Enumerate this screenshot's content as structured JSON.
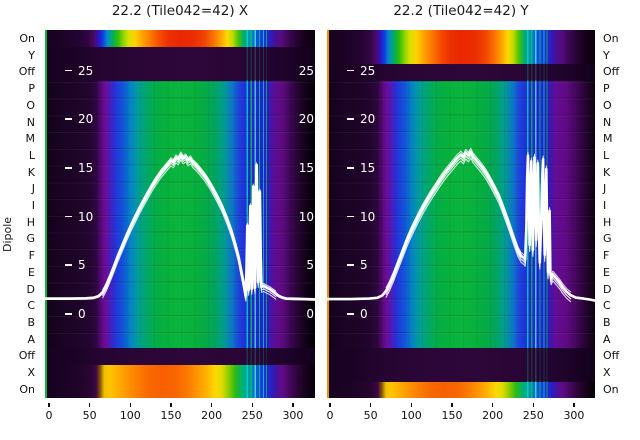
{
  "figure": {
    "ylabel": "Dipole",
    "dipole_labels": [
      "On",
      "Y",
      "Off",
      "P",
      "O",
      "N",
      "M",
      "L",
      "K",
      "J",
      "I",
      "H",
      "G",
      "F",
      "E",
      "D",
      "C",
      "B",
      "A",
      "Off",
      "X",
      "On"
    ],
    "x_tick_labels": [
      "0",
      "50",
      "100",
      "150",
      "200",
      "250",
      "300"
    ],
    "amplitude_tick_labels": [
      "25",
      "20",
      "15",
      "10",
      "5",
      "0"
    ],
    "colors": {
      "background": "#ffffff",
      "heatmap_dark": "#1d0327",
      "heatmap_green": "#08b13c",
      "heatmap_blue": "#2030d8",
      "heatmap_purple": "#630b90",
      "heatmap_red": "#e92800",
      "curve": "#ffffff"
    }
  },
  "panels": [
    {
      "title": "22.2 (Tile042=42) X",
      "pol": "X"
    },
    {
      "title": "22.2 (Tile042=42) Y",
      "pol": "Y"
    }
  ],
  "chart_data": [
    {
      "type": "heatmap",
      "title": "22.2 (Tile042=42) X",
      "ylabel": "Dipole",
      "x_ticks": [
        0,
        50,
        100,
        150,
        200,
        250,
        300
      ],
      "x_range": [
        -5,
        333
      ],
      "rows": [
        "On",
        "Y",
        "Off",
        "P",
        "O",
        "N",
        "M",
        "L",
        "K",
        "J",
        "I",
        "H",
        "G",
        "F",
        "E",
        "D",
        "C",
        "B",
        "A",
        "Off",
        "X",
        "On"
      ],
      "row_character": {
        "top_strong_rows": [
          "On"
        ],
        "top_off_rows": [
          "Y",
          "Off"
        ],
        "middle_rows": "P through A: purple-blue-green-blue-purple spectrum body with bright RFI stripes near channels 250-270, fading to black at right edge",
        "bottom_off_rows": [
          "Off"
        ],
        "bottom_strong_rows": [
          "X",
          "On"
        ]
      },
      "colormap": "jet-like over dark purple background",
      "overlay_line": {
        "name": "white bandpass amplitude (all dipoles overlaid)",
        "amplitude_ticks": [
          25,
          20,
          15,
          10,
          5,
          0
        ],
        "points": [
          [
            -6,
            -1.5
          ],
          [
            25,
            -1.5
          ],
          [
            45,
            -1.48
          ],
          [
            55,
            -1.42
          ],
          [
            61,
            -1.25
          ],
          [
            66,
            -0.85
          ],
          [
            70,
            -0.25
          ],
          [
            74,
            0.55
          ],
          [
            79,
            1.6
          ],
          [
            84,
            2.7
          ],
          [
            90,
            3.9
          ],
          [
            96,
            5.1
          ],
          [
            102,
            6.2
          ],
          [
            108,
            7.2
          ],
          [
            114,
            8.2
          ],
          [
            120,
            9.1
          ],
          [
            126,
            10.0
          ],
          [
            132,
            10.8
          ],
          [
            138,
            11.5
          ],
          [
            143,
            12.0
          ],
          [
            147,
            12.4
          ],
          [
            150,
            12.7
          ],
          [
            153,
            12.5
          ],
          [
            156,
            13.0
          ],
          [
            159,
            12.8
          ],
          [
            162,
            13.3
          ],
          [
            165,
            12.9
          ],
          [
            168,
            13.1
          ],
          [
            171,
            12.7
          ],
          [
            174,
            12.9
          ],
          [
            177,
            12.5
          ],
          [
            181,
            12.2
          ],
          [
            185,
            11.8
          ],
          [
            190,
            11.3
          ],
          [
            195,
            10.7
          ],
          [
            200,
            10.0
          ],
          [
            206,
            9.1
          ],
          [
            212,
            8.1
          ],
          [
            218,
            6.9
          ],
          [
            224,
            5.5
          ],
          [
            229,
            4.1
          ],
          [
            233,
            2.8
          ],
          [
            236,
            1.5
          ],
          [
            239,
            0.2
          ],
          [
            241,
            -0.8
          ],
          [
            242,
            -1.2
          ],
          [
            243,
            1.5
          ],
          [
            244,
            6.0
          ],
          [
            244.8,
            2.0
          ],
          [
            245.6,
            -0.6
          ],
          [
            246.6,
            3.5
          ],
          [
            247.6,
            8.0
          ],
          [
            248.6,
            2.5
          ],
          [
            249.4,
            -0.5
          ],
          [
            250.3,
            5.0
          ],
          [
            251.2,
            10.0
          ],
          [
            252.2,
            4.0
          ],
          [
            253.2,
            -0.4
          ],
          [
            254.2,
            6.0
          ],
          [
            255.2,
            12.2
          ],
          [
            256.2,
            6.5
          ],
          [
            257.2,
            0.2
          ],
          [
            258.2,
            4.0
          ],
          [
            259.2,
            9.5
          ],
          [
            260.2,
            3.0
          ],
          [
            261.2,
            -0.3
          ],
          [
            262.5,
            -0.25
          ],
          [
            264,
            -0.2
          ],
          [
            267,
            -0.35
          ],
          [
            271,
            -0.5
          ],
          [
            275,
            -0.75
          ],
          [
            279,
            -1.0
          ],
          [
            283,
            -1.25
          ],
          [
            287,
            -1.4
          ],
          [
            292,
            -1.5
          ],
          [
            300,
            -1.52
          ],
          [
            315,
            -1.55
          ],
          [
            333,
            -1.6
          ]
        ]
      }
    },
    {
      "type": "heatmap",
      "title": "22.2 (Tile042=42) Y",
      "ylabel": "Dipole",
      "x_ticks": [
        0,
        50,
        100,
        150,
        200,
        250,
        300
      ],
      "x_range": [
        -4,
        330
      ],
      "rows": [
        "On",
        "Y",
        "Off",
        "P",
        "O",
        "N",
        "M",
        "L",
        "K",
        "J",
        "I",
        "H",
        "G",
        "F",
        "E",
        "D",
        "C",
        "B",
        "A",
        "Off",
        "X",
        "On"
      ],
      "row_character": {
        "top_strong_rows": [
          "On",
          "Y"
        ],
        "top_off_rows": [
          "Off"
        ],
        "middle_rows": "P through A: purple-blue-green-blue-purple spectrum body with bright RFI stripes near channels 250-270, purple at right edge",
        "bottom_off_rows": [
          "Off",
          "X"
        ],
        "bottom_strong_rows": [
          "On"
        ]
      },
      "colormap": "jet-like over dark purple background",
      "overlay_line": {
        "name": "white bandpass amplitude (all dipoles overlaid)",
        "amplitude_ticks": [
          25,
          20,
          15,
          10,
          5,
          0
        ],
        "points": [
          [
            -4,
            -1.55
          ],
          [
            25,
            -1.55
          ],
          [
            48,
            -1.5
          ],
          [
            58,
            -1.42
          ],
          [
            64,
            -1.2
          ],
          [
            69,
            -0.7
          ],
          [
            73,
            -0.05
          ],
          [
            78,
            0.9
          ],
          [
            83,
            2.0
          ],
          [
            89,
            3.3
          ],
          [
            95,
            4.6
          ],
          [
            101,
            5.7
          ],
          [
            108,
            6.9
          ],
          [
            115,
            8.0
          ],
          [
            122,
            9.0
          ],
          [
            129,
            9.9
          ],
          [
            136,
            10.8
          ],
          [
            142,
            11.5
          ],
          [
            148,
            12.1
          ],
          [
            153,
            12.6
          ],
          [
            157,
            13.0
          ],
          [
            161,
            13.3
          ],
          [
            164,
            13.0
          ],
          [
            167,
            13.5
          ],
          [
            170,
            13.2
          ],
          [
            173,
            13.6
          ],
          [
            176,
            13.1
          ],
          [
            179,
            12.8
          ],
          [
            183,
            12.4
          ],
          [
            187,
            12.0
          ],
          [
            192,
            11.4
          ],
          [
            197,
            10.7
          ],
          [
            202,
            9.9
          ],
          [
            208,
            8.9
          ],
          [
            214,
            7.6
          ],
          [
            220,
            6.2
          ],
          [
            226,
            4.7
          ],
          [
            231,
            3.5
          ],
          [
            235,
            2.9
          ],
          [
            238,
            2.7
          ],
          [
            240,
            2.5
          ],
          [
            241.5,
            6.0
          ],
          [
            242.5,
            11.0
          ],
          [
            243.5,
            13.2
          ],
          [
            244.5,
            8.0
          ],
          [
            245.5,
            4.0
          ],
          [
            246.5,
            9.0
          ],
          [
            247.5,
            12.6
          ],
          [
            248.5,
            7.0
          ],
          [
            249.5,
            3.5
          ],
          [
            250.5,
            9.5
          ],
          [
            251.5,
            13.0
          ],
          [
            252.5,
            8.0
          ],
          [
            253.5,
            4.5
          ],
          [
            254.5,
            10.0
          ],
          [
            255.5,
            12.4
          ],
          [
            256.5,
            7.0
          ],
          [
            258,
            2.2
          ],
          [
            259.5,
            6.0
          ],
          [
            261,
            11.0
          ],
          [
            262,
            12.8
          ],
          [
            263,
            6.5
          ],
          [
            264,
            3.0
          ],
          [
            265,
            8.0
          ],
          [
            266,
            11.8
          ],
          [
            267,
            5.0
          ],
          [
            268,
            1.2
          ],
          [
            269,
            4.0
          ],
          [
            270,
            7.5
          ],
          [
            271,
            1.0
          ],
          [
            272,
            0.6
          ],
          [
            274,
            1.0
          ],
          [
            278,
            0.6
          ],
          [
            282,
            0.2
          ],
          [
            286,
            -0.3
          ],
          [
            291,
            -0.8
          ],
          [
            296,
            -1.15
          ],
          [
            302,
            -1.4
          ],
          [
            312,
            -1.5
          ],
          [
            320,
            -1.6
          ],
          [
            326,
            -1.7
          ]
        ]
      }
    }
  ]
}
